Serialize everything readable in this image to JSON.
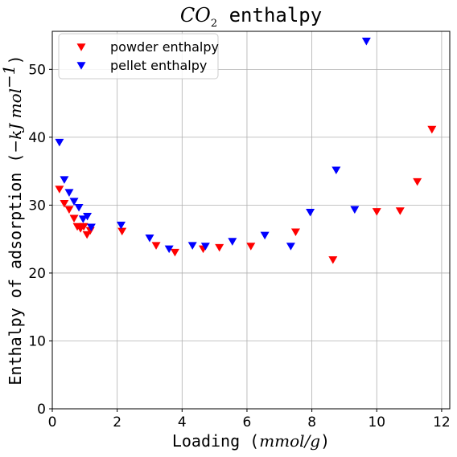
{
  "chart_data": {
    "type": "scatter",
    "title_parts": {
      "main": "CO",
      "sub": "2",
      "rest": " enthalpy"
    },
    "xlabel_parts": {
      "prefix": "Loading (",
      "math": "mmol/g",
      "suffix": ")"
    },
    "ylabel_parts": {
      "prefix": "Enthalpy of adsorption (",
      "math": "−kJ mol",
      "sup": "−1",
      "suffix": ")"
    },
    "xlim": [
      0,
      12.25
    ],
    "ylim": [
      0,
      55.6
    ],
    "x_ticks": [
      0,
      2,
      4,
      6,
      8,
      10,
      12
    ],
    "y_ticks": [
      0,
      10,
      20,
      30,
      40,
      50
    ],
    "grid": true,
    "legend_position": "top-left",
    "marker": "triangle-down",
    "series": [
      {
        "name": "powder enthalpy",
        "color": "#ff0000",
        "x": [
          0.22,
          0.37,
          0.52,
          0.67,
          0.77,
          0.87,
          0.97,
          1.07,
          1.17,
          2.15,
          3.2,
          3.78,
          4.65,
          5.15,
          6.12,
          7.5,
          8.65,
          10.0,
          10.72,
          11.25,
          11.7
        ],
        "y": [
          32.3,
          30.2,
          29.3,
          28.0,
          26.8,
          26.5,
          26.8,
          25.6,
          26.2,
          26.1,
          24.0,
          23.0,
          23.5,
          23.7,
          23.9,
          26.0,
          21.9,
          29.0,
          29.1,
          33.4,
          41.1
        ]
      },
      {
        "name": "pellet enthalpy",
        "color": "#0000ff",
        "x": [
          0.22,
          0.37,
          0.52,
          0.67,
          0.82,
          0.95,
          1.08,
          1.2,
          2.12,
          3.0,
          3.6,
          4.32,
          4.72,
          5.55,
          6.55,
          7.35,
          7.95,
          8.75,
          9.32,
          9.68
        ],
        "y": [
          39.2,
          33.7,
          31.8,
          30.5,
          29.6,
          27.9,
          28.3,
          26.7,
          27.0,
          25.1,
          23.5,
          24.0,
          23.9,
          24.6,
          25.5,
          23.9,
          28.9,
          35.1,
          29.3,
          54.1
        ]
      }
    ]
  }
}
